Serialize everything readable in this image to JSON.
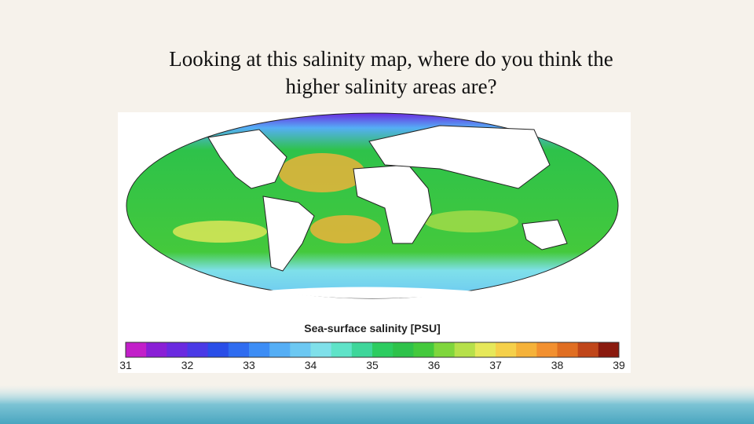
{
  "slide": {
    "title_line1": "Looking at this salinity map, where do you think the",
    "title_line2": "higher salinity areas are?",
    "map": {
      "caption": "Sea-surface salinity [PSU]",
      "colorbar": {
        "ticks": [
          31,
          32,
          33,
          34,
          35,
          36,
          37,
          38,
          39
        ],
        "colors": [
          "#c21fc9",
          "#8a1fd6",
          "#6a2ae0",
          "#4a3ae6",
          "#2a4ee8",
          "#2f6cf0",
          "#3d8df5",
          "#55aef5",
          "#6cc8f2",
          "#7fe0ea",
          "#5fe3c8",
          "#3ed69a",
          "#2ccc60",
          "#2ec24a",
          "#44c93c",
          "#7fd63c",
          "#b6e04a",
          "#e6e85a",
          "#f5d04a",
          "#f5b23a",
          "#f29030",
          "#e06e22",
          "#c0461a",
          "#8a1a0e"
        ]
      }
    }
  }
}
